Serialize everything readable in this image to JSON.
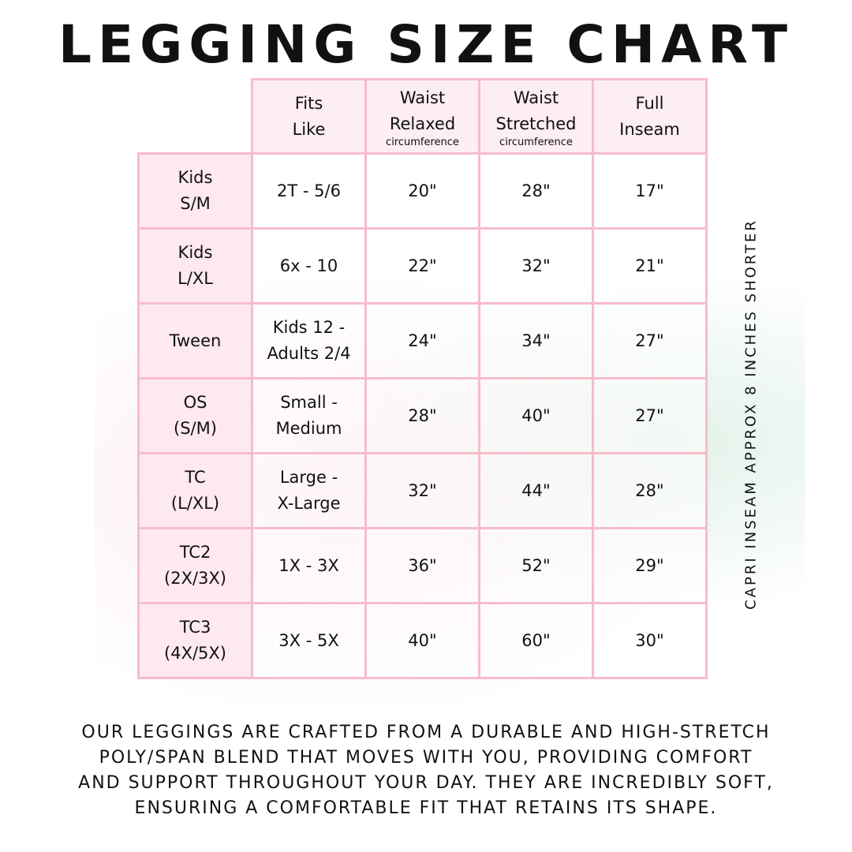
{
  "title": "LEGGING SIZE CHART",
  "headers": [
    {
      "label": "Fits\nLike",
      "sub": ""
    },
    {
      "label": "Waist\nRelaxed",
      "sub": "circumference"
    },
    {
      "label": "Waist\nStretched",
      "sub": "circumference"
    },
    {
      "label": "Full\nInseam",
      "sub": ""
    }
  ],
  "rows": [
    {
      "size": "Kids\nS/M",
      "cells": [
        "2T - 5/6",
        "20\"",
        "28\"",
        "17\""
      ]
    },
    {
      "size": "Kids\nL/XL",
      "cells": [
        "6x - 10",
        "22\"",
        "32\"",
        "21\""
      ]
    },
    {
      "size": "Tween",
      "cells": [
        "Kids 12 -\nAdults 2/4",
        "24\"",
        "34\"",
        "27\""
      ]
    },
    {
      "size": "OS\n(S/M)",
      "cells": [
        "Small -\nMedium",
        "28\"",
        "40\"",
        "27\""
      ]
    },
    {
      "size": "TC\n(L/XL)",
      "cells": [
        "Large -\nX-Large",
        "32\"",
        "44\"",
        "28\""
      ]
    },
    {
      "size": "TC2\n(2X/3X)",
      "cells": [
        "1X - 3X",
        "36\"",
        "52\"",
        "29\""
      ]
    },
    {
      "size": "TC3\n(4X/5X)",
      "cells": [
        "3X - 5X",
        "40\"",
        "60\"",
        "30\""
      ]
    }
  ],
  "side_note": "CAPRI INSEAM APPROX 8 INCHES SHORTER",
  "footer": "OUR LEGGINGS ARE CRAFTED FROM A DURABLE AND HIGH-STRETCH\nPOLY/SPAN BLEND THAT MOVES WITH YOU, PROVIDING COMFORT\nAND SUPPORT THROUGHOUT YOUR DAY. THEY ARE INCREDIBLY SOFT,\nENSURING A COMFORTABLE FIT THAT RETAINS ITS SHAPE.",
  "colors": {
    "border": "#f7bccb",
    "header_bg": "#fdeef2",
    "text": "#111111"
  }
}
